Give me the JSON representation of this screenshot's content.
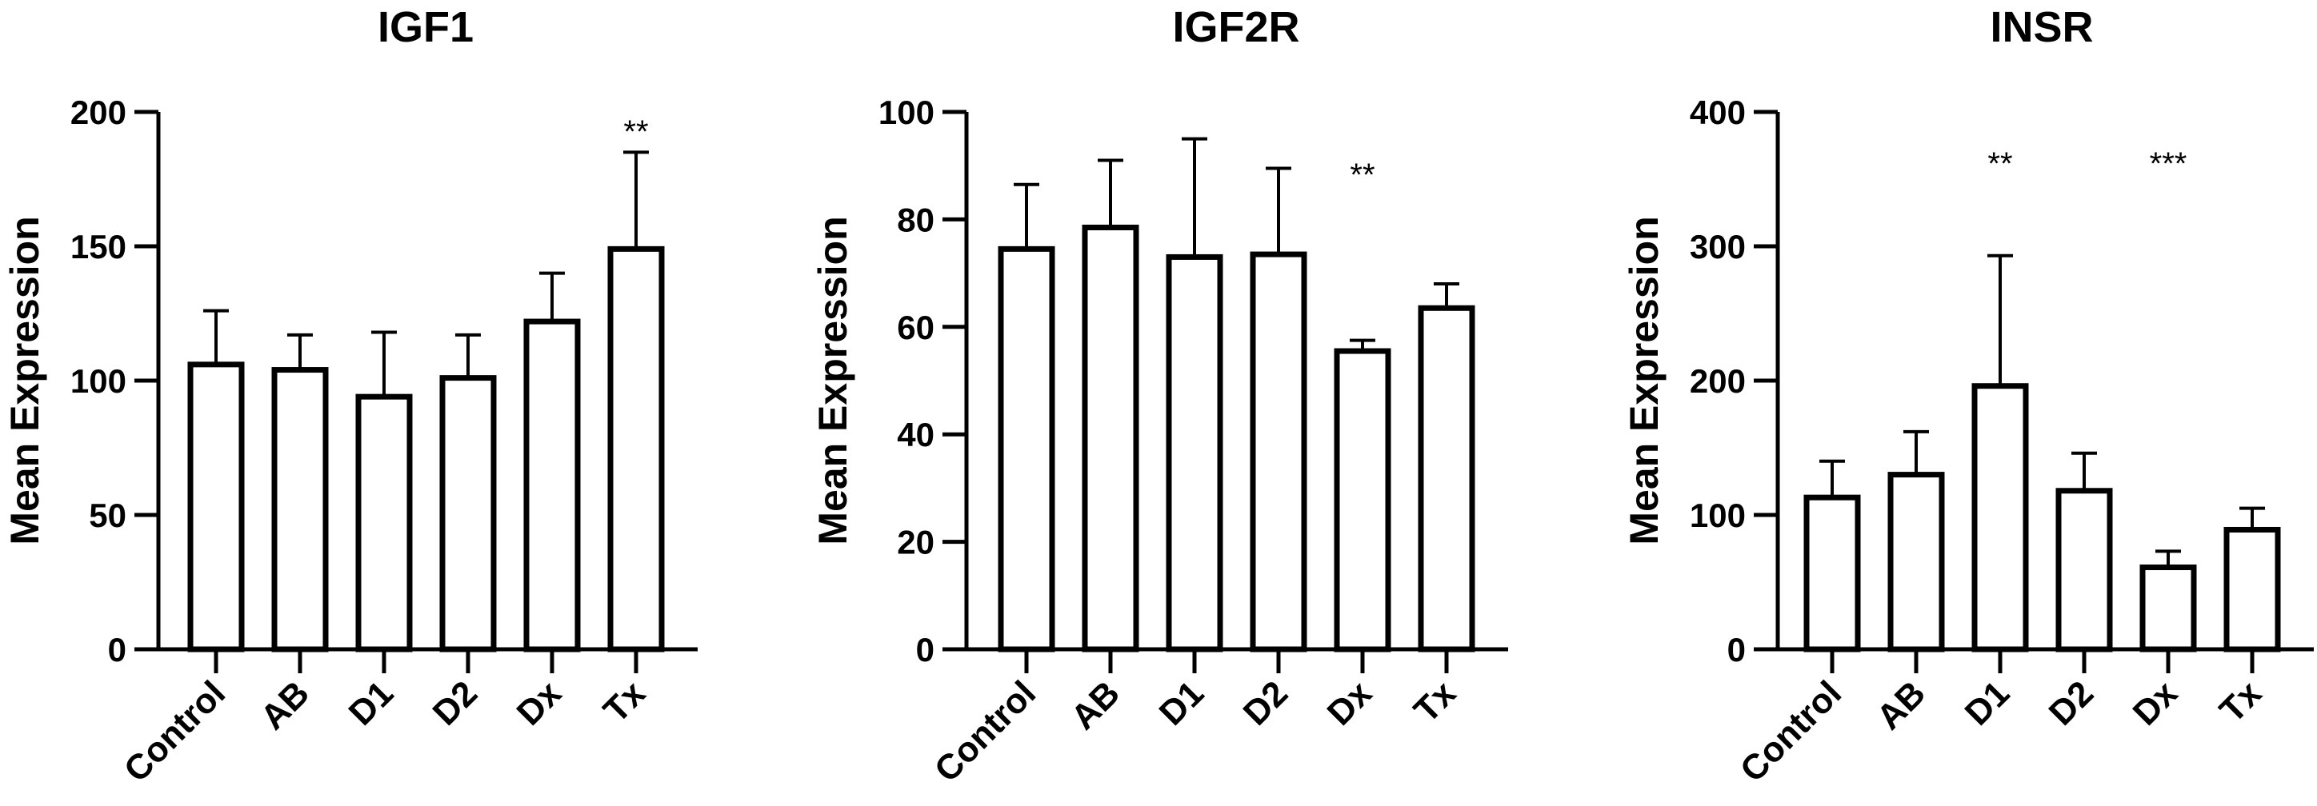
{
  "chart_data": [
    {
      "type": "bar",
      "title": "IGF1",
      "ylabel": "Mean  Expression",
      "xlabel": "",
      "categories": [
        "Control",
        "AB",
        "D1",
        "D2",
        "Dx",
        "Tx"
      ],
      "values": [
        106,
        104,
        94,
        101,
        122,
        149
      ],
      "error_upper": [
        126,
        117,
        118,
        117,
        140,
        185
      ],
      "significance": [
        "",
        "",
        "",
        "",
        "",
        "**"
      ],
      "ylim": [
        0,
        200
      ],
      "yticks": [
        0,
        50,
        100,
        150,
        200
      ],
      "grid": false
    },
    {
      "type": "bar",
      "title": "IGF2R",
      "ylabel": "Mean  Expression",
      "xlabel": "",
      "categories": [
        "Control",
        "AB",
        "D1",
        "D2",
        "Dx",
        "Tx"
      ],
      "values": [
        74.5,
        78.5,
        73,
        73.5,
        55.5,
        63.5
      ],
      "error_upper": [
        86.5,
        91,
        95,
        89.5,
        57.5,
        68
      ],
      "significance": [
        "",
        "",
        "",
        "",
        "**",
        ""
      ],
      "ylim": [
        0,
        100
      ],
      "yticks": [
        0,
        20,
        40,
        60,
        80,
        100
      ],
      "grid": false
    },
    {
      "type": "bar",
      "title": "INSR",
      "ylabel": "Mean  Expression",
      "xlabel": "",
      "categories": [
        "Control",
        "AB",
        "D1",
        "D2",
        "Dx",
        "Tx"
      ],
      "values": [
        113,
        130,
        196,
        118,
        61,
        89
      ],
      "error_upper": [
        140,
        162,
        293,
        146,
        73,
        105
      ],
      "significance": [
        "",
        "",
        "**",
        "",
        "***",
        ""
      ],
      "ylim": [
        0,
        400
      ],
      "yticks": [
        0,
        100,
        200,
        300,
        400
      ],
      "grid": false
    }
  ]
}
